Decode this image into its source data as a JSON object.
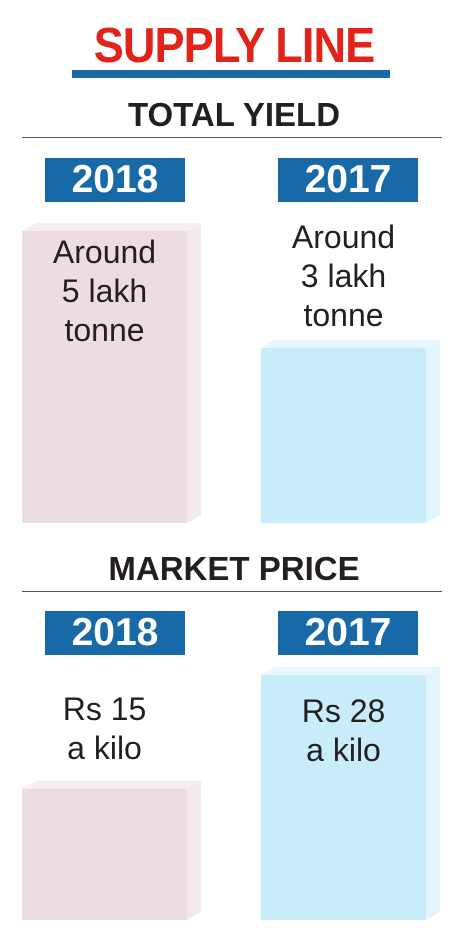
{
  "title": "SUPPLY LINE",
  "colors": {
    "title": "#e2231a",
    "accent": "#1769a8",
    "bar_2018": "#ecdde5",
    "bar_2017": "#c9ecfb"
  },
  "chart_data": [
    {
      "type": "bar",
      "title": "TOTAL YIELD",
      "unit": "lakh tonne",
      "categories": [
        "2018",
        "2017"
      ],
      "values": [
        5,
        3
      ],
      "labels": [
        [
          "Around",
          "5 lakh",
          "tonne"
        ],
        [
          "Around",
          "3 lakh",
          "tonne"
        ]
      ]
    },
    {
      "type": "bar",
      "title": "MARKET PRICE",
      "unit": "Rs a kilo",
      "categories": [
        "2018",
        "2017"
      ],
      "values": [
        15,
        28
      ],
      "labels": [
        [
          "Rs 15",
          "a kilo"
        ],
        [
          "Rs 28",
          "a kilo"
        ]
      ]
    }
  ]
}
